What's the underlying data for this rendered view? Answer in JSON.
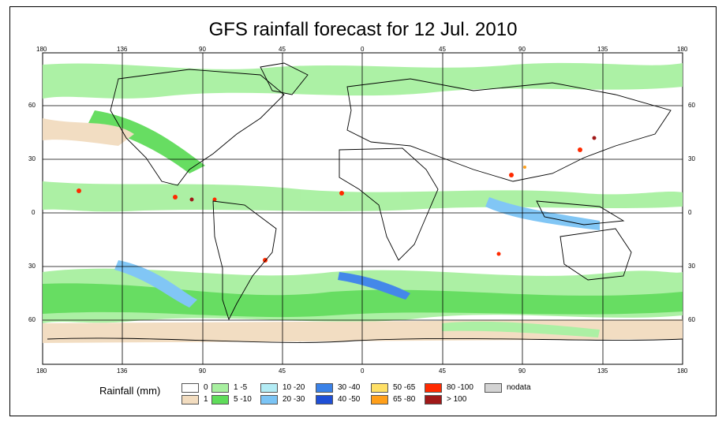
{
  "title": "GFS rainfall forecast for 12 Jul. 2010",
  "x_ticks": [
    "180",
    "136",
    "90",
    "45",
    "0",
    "45",
    "90",
    "135",
    "180"
  ],
  "y_ticks": [
    "60",
    "30",
    "0",
    "30",
    "60"
  ],
  "legend": {
    "title": "Rainfall (mm)",
    "items": [
      {
        "label": "0",
        "color": "#ffffff"
      },
      {
        "label": "1",
        "color": "#f2dcbf"
      },
      {
        "label": "1 -5",
        "color": "#a8f0a0"
      },
      {
        "label": "5 -10",
        "color": "#5fdc5a"
      },
      {
        "label": "10 -20",
        "color": "#b3ecf5"
      },
      {
        "label": "20 -30",
        "color": "#7bc4f5"
      },
      {
        "label": "30 -40",
        "color": "#3b82e8"
      },
      {
        "label": "40 -50",
        "color": "#1f4fd6"
      },
      {
        "label": "50 -65",
        "color": "#ffe066"
      },
      {
        "label": "65 -80",
        "color": "#ff9f1a"
      },
      {
        "label": "80 -100",
        "color": "#ff2a00"
      },
      {
        "label": "> 100",
        "color": "#a01818"
      },
      {
        "label": "nodata",
        "color": "#d3d3d3"
      }
    ]
  }
}
